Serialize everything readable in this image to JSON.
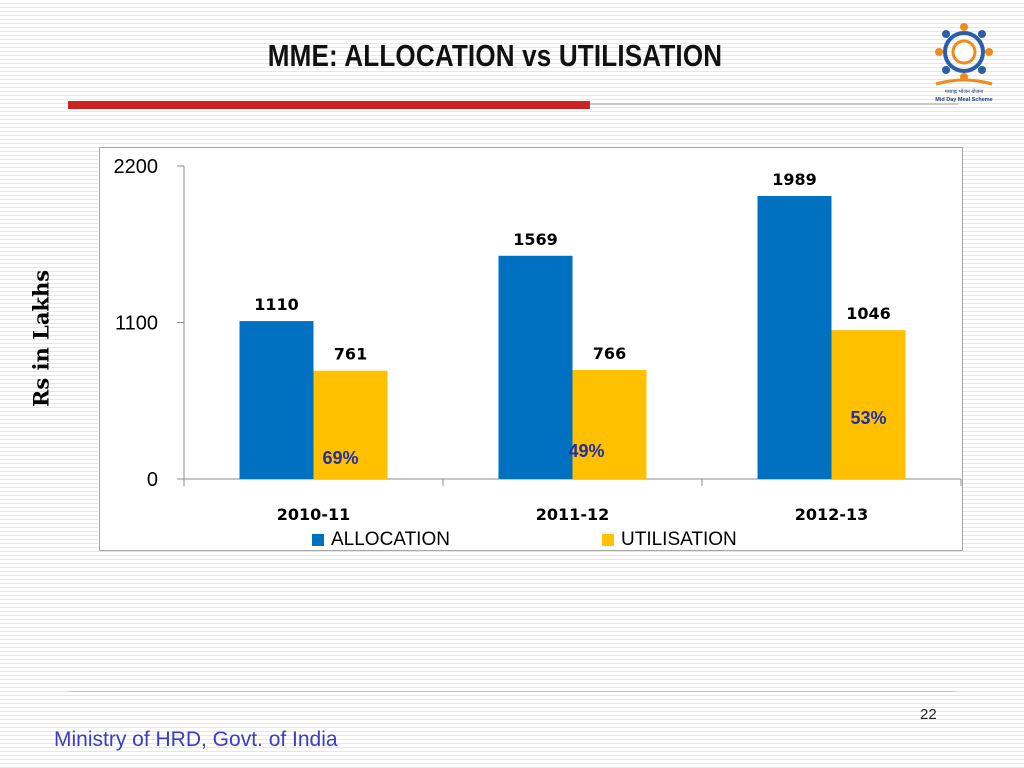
{
  "slide": {
    "title": "MME: ALLOCATION vs UTILISATION",
    "page_number": "22",
    "footer": "Ministry of HRD, Govt. of India",
    "logo_text_1": "मध्याह्न भोजन योजना",
    "logo_text_2": "Mid Day Meal Scheme"
  },
  "chart_data": {
    "type": "bar",
    "title": "",
    "xlabel": "",
    "ylabel": "Rs in Lakhs",
    "categories": [
      "2010-11",
      "2011-12",
      "2012-13"
    ],
    "series": [
      {
        "name": "ALLOCATION",
        "values": [
          1110,
          1569,
          1989
        ],
        "color": "#0070c0"
      },
      {
        "name": "UTILISATION",
        "values": [
          761,
          766,
          1046
        ],
        "color": "#ffc000"
      }
    ],
    "ylim": [
      0,
      2200
    ],
    "yticks": [
      0,
      1100,
      2200
    ],
    "utilisation_percent_labels": [
      "69%",
      "49%",
      "53%"
    ],
    "percent_label_color": "#1f2fa8",
    "grid": false,
    "legend_position": "bottom"
  }
}
